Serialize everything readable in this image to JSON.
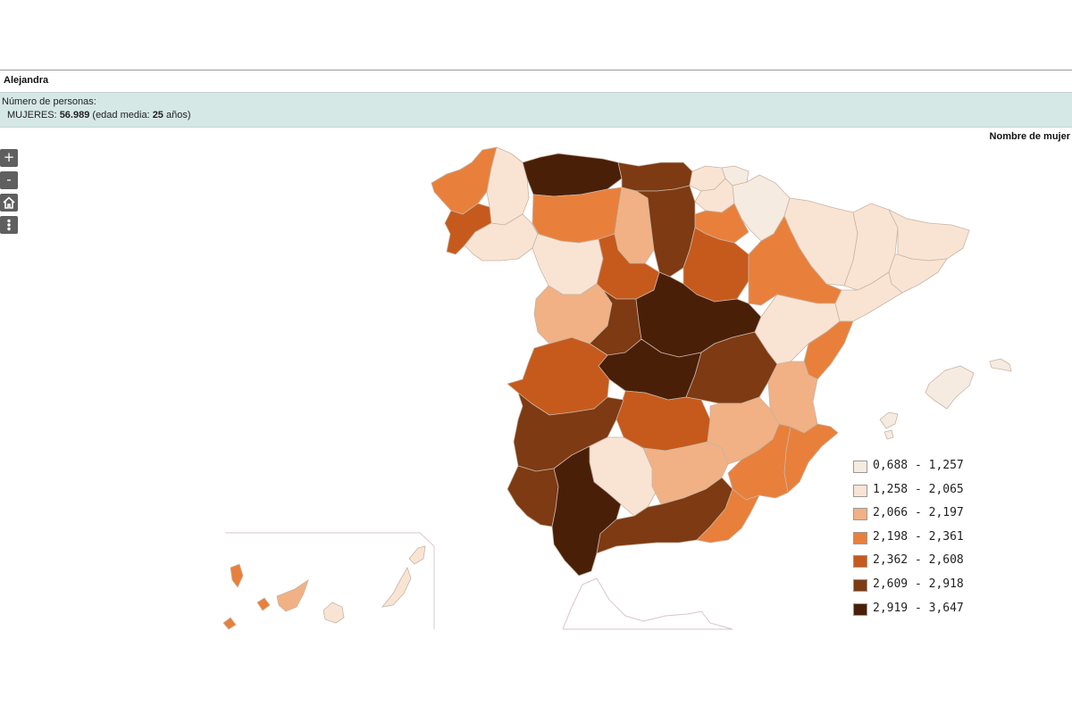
{
  "header": {
    "name": "Alejandra"
  },
  "info": {
    "label": "Número de personas:",
    "category": "MUJERES:",
    "count": "56.989",
    "age_text_before": "(edad media:",
    "age": "25",
    "age_text_after": "años)"
  },
  "map": {
    "title": "Nombre de mujer",
    "controls": [
      {
        "name": "zoom-in",
        "symbol": "+"
      },
      {
        "name": "zoom-out",
        "symbol": "-"
      },
      {
        "name": "home",
        "symbol": "home-icon"
      },
      {
        "name": "menu",
        "symbol": "vertical-dots-icon"
      }
    ]
  },
  "legend": {
    "items": [
      {
        "label": "0,688 - 1,257",
        "color": "#f6ebe1"
      },
      {
        "label": "1,258 - 2,065",
        "color": "#f9e4d3"
      },
      {
        "label": "2,066 - 2,197",
        "color": "#f1b184"
      },
      {
        "label": "2,198 - 2,361",
        "color": "#e8803c"
      },
      {
        "label": "2,362 - 2,608",
        "color": "#c65a1c"
      },
      {
        "label": "2,609 - 2,918",
        "color": "#7e3a12"
      },
      {
        "label": "2,919 - 3,647",
        "color": "#4a1f08"
      }
    ]
  }
}
